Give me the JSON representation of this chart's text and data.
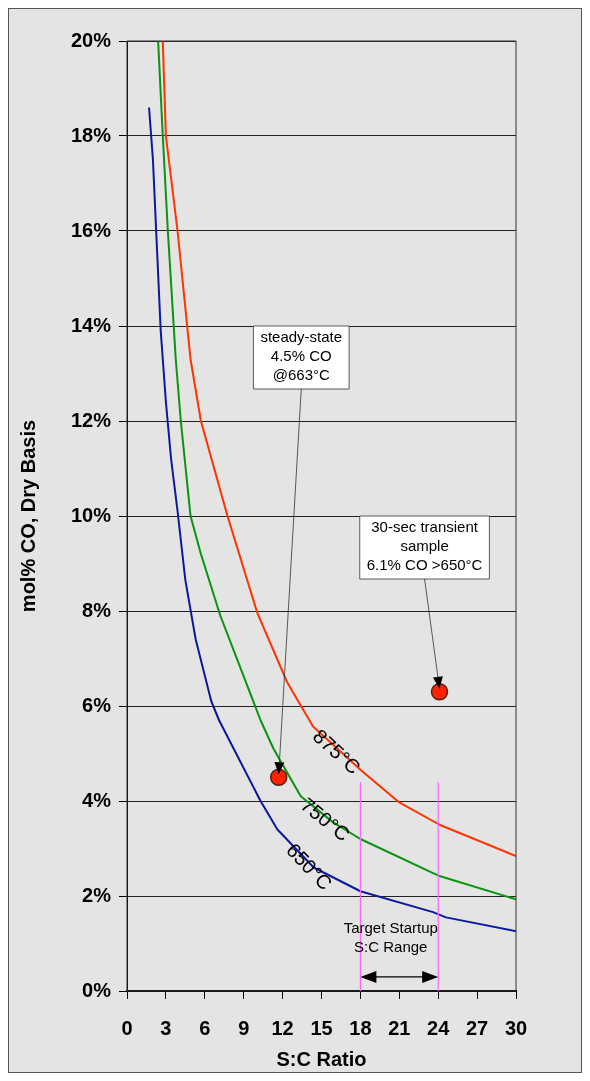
{
  "chart_data": {
    "type": "line",
    "xlabel": "S:C Ratio",
    "ylabel": "mol% CO, Dry Basis",
    "xlim": [
      0,
      30
    ],
    "xticks": [
      0,
      3,
      6,
      9,
      12,
      15,
      18,
      21,
      24,
      27,
      30
    ],
    "ylim": [
      0,
      20
    ],
    "yticks": [
      {
        "value": 0,
        "label": "0%"
      },
      {
        "value": 2,
        "label": "2%"
      },
      {
        "value": 4,
        "label": "4%"
      },
      {
        "value": 6,
        "label": "6%"
      },
      {
        "value": 8,
        "label": "8%"
      },
      {
        "value": 10,
        "label": "10%"
      },
      {
        "value": 12,
        "label": "12%"
      },
      {
        "value": 14,
        "label": "14%"
      },
      {
        "value": 16,
        "label": "16%"
      },
      {
        "value": 18,
        "label": "18%"
      },
      {
        "value": 20,
        "label": "20%"
      }
    ],
    "grid": "y",
    "legend": false,
    "series": [
      {
        "name": "650°C",
        "color": "#0a1a9e",
        "marker": "none",
        "x": [
          1.7,
          2.0,
          2.6,
          3.0,
          3.4,
          3.9,
          4.5,
          5.3,
          6.5,
          7.1,
          10.3,
          11.6,
          14.4,
          18,
          23.6,
          24.6,
          30
        ],
        "values": [
          18.6,
          17.5,
          13.9,
          12.4,
          11.2,
          10.1,
          8.65,
          7.4,
          6.1,
          5.7,
          4.0,
          3.4,
          2.6,
          2.1,
          1.66,
          1.55,
          1.26
        ]
      },
      {
        "name": "750°C",
        "color": "#0a9410",
        "marker": "none",
        "x": [
          2.4,
          2.76,
          3.15,
          3.76,
          4.15,
          4.9,
          5.7,
          7.2,
          10.3,
          11.3,
          13.4,
          15.9,
          18,
          24.1,
          30
        ],
        "values": [
          20,
          18.0,
          16.0,
          13.3,
          12.0,
          10.0,
          9.2,
          7.9,
          5.7,
          5.1,
          4.1,
          3.55,
          3.2,
          2.42,
          1.93
        ]
      },
      {
        "name": "875°C",
        "color": "#ff3300",
        "marker": "none",
        "x": [
          2.76,
          3.0,
          3.9,
          4.9,
          5.7,
          7.75,
          10.05,
          12.35,
          14.35,
          18,
          21,
          24.1,
          30
        ],
        "values": [
          20,
          18.0,
          16.0,
          13.3,
          12.0,
          10.0,
          7.96,
          6.5,
          5.57,
          4.66,
          3.97,
          3.5,
          2.84
        ]
      },
      {
        "type": "scatter",
        "color": "#ff2200",
        "marker": "circle",
        "x": [
          11.7,
          24.1
        ],
        "values": [
          4.5,
          6.3
        ]
      }
    ],
    "ref_lines": [
      {
        "axis": "x",
        "value": 18,
        "color": "#ff66ff"
      },
      {
        "axis": "x",
        "value": 24,
        "color": "#ff66ff"
      }
    ],
    "annotations": [
      {
        "text": "steady-state\n4.5% CO\n@663°C",
        "x": 11.7,
        "y": 4.5
      },
      {
        "text": "30-sec transient\nsample\n6.1% CO >650°C",
        "x": 24.1,
        "y": 6.3
      },
      "Target Startup\nS:C Range"
    ]
  }
}
